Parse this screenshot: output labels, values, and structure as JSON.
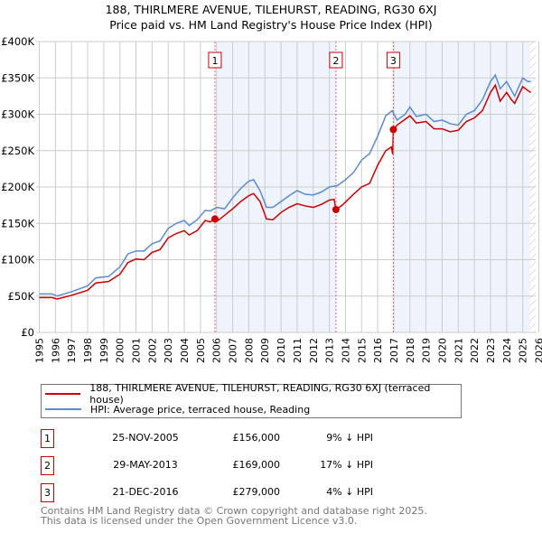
{
  "chart_data": {
    "type": "line",
    "title": "188, THIRLMERE AVENUE, TILEHURST, READING, RG30 6XJ",
    "subtitle": "Price paid vs. HM Land Registry's House Price Index (HPI)",
    "xlim": [
      1995,
      2026
    ],
    "ylim": [
      0,
      400000
    ],
    "x_ticks": [
      "1995",
      "1996",
      "1997",
      "1998",
      "1999",
      "2000",
      "2001",
      "2002",
      "2003",
      "2004",
      "2005",
      "2006",
      "2007",
      "2008",
      "2009",
      "2010",
      "2011",
      "2012",
      "2013",
      "2014",
      "2015",
      "2016",
      "2017",
      "2018",
      "2019",
      "2020",
      "2021",
      "2022",
      "2023",
      "2024",
      "2025",
      "2026"
    ],
    "y_ticks": [
      {
        "v": 0,
        "label": "£0"
      },
      {
        "v": 50000,
        "label": "£50K"
      },
      {
        "v": 100000,
        "label": "£100K"
      },
      {
        "v": 150000,
        "label": "£150K"
      },
      {
        "v": 200000,
        "label": "£200K"
      },
      {
        "v": 250000,
        "label": "£250K"
      },
      {
        "v": 300000,
        "label": "£300K"
      },
      {
        "v": 350000,
        "label": "£350K"
      },
      {
        "v": 400000,
        "label": "£400K"
      }
    ],
    "grid": true,
    "series": [
      {
        "name": "188, THIRLMERE AVENUE, TILEHURST, READING, RG30 6XJ (terraced house)",
        "color": "#cc0000",
        "points": [
          [
            1995,
            48
          ],
          [
            1995.8,
            48
          ],
          [
            1996.1,
            46
          ],
          [
            1997,
            51
          ],
          [
            1998,
            58
          ],
          [
            1998.5,
            68
          ],
          [
            1999.3,
            70
          ],
          [
            2000,
            80
          ],
          [
            2000.5,
            96
          ],
          [
            2001,
            101
          ],
          [
            2001.5,
            100
          ],
          [
            2002,
            110
          ],
          [
            2002.5,
            114
          ],
          [
            2003,
            130
          ],
          [
            2003.5,
            136
          ],
          [
            2004,
            140
          ],
          [
            2004.3,
            134
          ],
          [
            2004.8,
            140
          ],
          [
            2005.3,
            154
          ],
          [
            2005.6,
            152
          ],
          [
            2005.9,
            156
          ],
          [
            2006.1,
            154
          ],
          [
            2007,
            170
          ],
          [
            2007.5,
            180
          ],
          [
            2008,
            188
          ],
          [
            2008.3,
            191
          ],
          [
            2008.7,
            180
          ],
          [
            2009.1,
            156
          ],
          [
            2009.5,
            155
          ],
          [
            2010,
            165
          ],
          [
            2010.5,
            172
          ],
          [
            2011,
            177
          ],
          [
            2011.5,
            174
          ],
          [
            2012,
            172
          ],
          [
            2012.5,
            176
          ],
          [
            2013,
            182
          ],
          [
            2013.3,
            183
          ],
          [
            2013.4,
            169
          ],
          [
            2013.8,
            175
          ],
          [
            2014.5,
            190
          ],
          [
            2015,
            200
          ],
          [
            2015.5,
            205
          ],
          [
            2016,
            230
          ],
          [
            2016.5,
            250
          ],
          [
            2016.85,
            255
          ],
          [
            2016.93,
            245
          ],
          [
            2016.97,
            279
          ],
          [
            2017.2,
            285
          ],
          [
            2017.7,
            293
          ],
          [
            2018,
            298
          ],
          [
            2018.4,
            288
          ],
          [
            2019,
            290
          ],
          [
            2019.5,
            280
          ],
          [
            2020,
            280
          ],
          [
            2020.5,
            276
          ],
          [
            2021,
            278
          ],
          [
            2021.5,
            290
          ],
          [
            2022,
            295
          ],
          [
            2022.5,
            305
          ],
          [
            2023,
            330
          ],
          [
            2023.3,
            340
          ],
          [
            2023.6,
            318
          ],
          [
            2024,
            330
          ],
          [
            2024.3,
            320
          ],
          [
            2024.5,
            315
          ],
          [
            2025,
            338
          ],
          [
            2025.3,
            333
          ],
          [
            2025.5,
            330
          ]
        ]
      },
      {
        "name": "HPI: Average price, terraced house, Reading",
        "color": "#5b8bd0",
        "points": [
          [
            1995,
            53
          ],
          [
            1995.8,
            53
          ],
          [
            1996.1,
            50
          ],
          [
            1997,
            56
          ],
          [
            1998,
            64
          ],
          [
            1998.5,
            75
          ],
          [
            1999.3,
            77
          ],
          [
            2000,
            90
          ],
          [
            2000.5,
            108
          ],
          [
            2001,
            112
          ],
          [
            2001.5,
            112
          ],
          [
            2002,
            122
          ],
          [
            2002.5,
            126
          ],
          [
            2003,
            143
          ],
          [
            2003.5,
            150
          ],
          [
            2004,
            154
          ],
          [
            2004.3,
            147
          ],
          [
            2004.8,
            155
          ],
          [
            2005.3,
            168
          ],
          [
            2005.6,
            167
          ],
          [
            2006,
            172
          ],
          [
            2006.5,
            170
          ],
          [
            2007,
            185
          ],
          [
            2007.5,
            198
          ],
          [
            2008,
            208
          ],
          [
            2008.3,
            210
          ],
          [
            2008.7,
            195
          ],
          [
            2009.1,
            172
          ],
          [
            2009.5,
            172
          ],
          [
            2010,
            180
          ],
          [
            2010.5,
            188
          ],
          [
            2011,
            195
          ],
          [
            2011.5,
            190
          ],
          [
            2012,
            189
          ],
          [
            2012.5,
            193
          ],
          [
            2013,
            200
          ],
          [
            2013.5,
            202
          ],
          [
            2014,
            210
          ],
          [
            2014.5,
            220
          ],
          [
            2015,
            237
          ],
          [
            2015.5,
            246
          ],
          [
            2016,
            270
          ],
          [
            2016.5,
            298
          ],
          [
            2016.9,
            305
          ],
          [
            2017.2,
            292
          ],
          [
            2017.7,
            300
          ],
          [
            2018,
            310
          ],
          [
            2018.4,
            297
          ],
          [
            2019,
            300
          ],
          [
            2019.5,
            290
          ],
          [
            2020,
            292
          ],
          [
            2020.5,
            287
          ],
          [
            2021,
            285
          ],
          [
            2021.5,
            300
          ],
          [
            2022,
            305
          ],
          [
            2022.5,
            320
          ],
          [
            2023,
            345
          ],
          [
            2023.3,
            354
          ],
          [
            2023.6,
            335
          ],
          [
            2024,
            345
          ],
          [
            2024.3,
            333
          ],
          [
            2024.5,
            325
          ],
          [
            2025,
            350
          ],
          [
            2025.3,
            345
          ],
          [
            2025.5,
            345
          ]
        ]
      }
    ],
    "y_unit": "thousands GBP",
    "sales": [
      {
        "n": "1",
        "x": 2005.9,
        "value": 156000,
        "date": "25-NOV-2005",
        "price": "£156,000",
        "diff": "9% ↓ HPI"
      },
      {
        "n": "2",
        "x": 2013.41,
        "value": 169000,
        "date": "29-MAY-2013",
        "price": "£169,000",
        "diff": "17% ↓ HPI"
      },
      {
        "n": "3",
        "x": 2016.97,
        "value": 279000,
        "date": "21-DEC-2016",
        "price": "£279,000",
        "diff": "4% ↓ HPI"
      }
    ],
    "shaded_ranges": [
      [
        2005.9,
        2013.41
      ],
      [
        2016.97,
        2025.45
      ]
    ],
    "forecast_hatch_from": 2025.45
  },
  "footer": {
    "line1": "Contains HM Land Registry data © Crown copyright and database right 2025.",
    "line2": "This data is licensed under the Open Government Licence v3.0."
  }
}
